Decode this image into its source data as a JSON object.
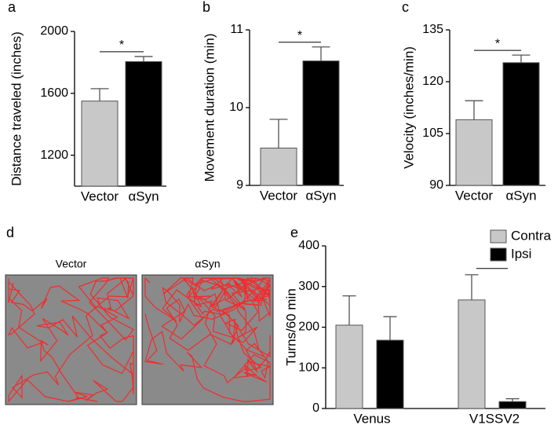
{
  "chart_data": [
    {
      "type": "bar",
      "label": "a",
      "ylabel": "Distance traveled (inches)",
      "categories": [
        "Vector",
        "αSyn"
      ],
      "values": [
        1550,
        1805
      ],
      "errors": [
        80,
        33
      ],
      "colors": [
        "#c8c8c8",
        "#000000"
      ],
      "ylim": [
        1000,
        2000
      ],
      "yticks": [
        1200,
        1600,
        2000
      ],
      "significance": "*"
    },
    {
      "type": "bar",
      "label": "b",
      "ylabel": "Movement duration (min)",
      "categories": [
        "Vector",
        "αSyn"
      ],
      "values": [
        9.48,
        10.6
      ],
      "errors": [
        0.37,
        0.18
      ],
      "colors": [
        "#c8c8c8",
        "#000000"
      ],
      "ylim": [
        9,
        11
      ],
      "yticks": [
        9,
        10,
        11
      ],
      "significance": "*"
    },
    {
      "type": "bar",
      "label": "c",
      "ylabel": "Velocity (inches/min)",
      "categories": [
        "Vector",
        "αSyn"
      ],
      "values": [
        109,
        125.5
      ],
      "errors": [
        5.5,
        2.2
      ],
      "colors": [
        "#c8c8c8",
        "#000000"
      ],
      "ylim": [
        90,
        135
      ],
      "yticks": [
        90,
        105,
        120,
        135
      ],
      "significance": "*"
    },
    {
      "type": "image",
      "label": "d",
      "panels": [
        "Vector",
        "αSyn"
      ]
    },
    {
      "type": "bar",
      "label": "e",
      "ylabel": "Turns/60 min",
      "categories": [
        "Venus",
        "V1SSV2"
      ],
      "series": [
        {
          "name": "Contra",
          "color": "#c8c8c8",
          "values": [
            205,
            267
          ],
          "errors": [
            72,
            62
          ]
        },
        {
          "name": "Ipsi",
          "color": "#000000",
          "values": [
            168,
            17
          ],
          "errors": [
            58,
            7
          ]
        }
      ],
      "ylim": [
        0,
        400
      ],
      "yticks": [
        0,
        100,
        200,
        300,
        400
      ],
      "significance": "*",
      "legend": "top-right"
    }
  ]
}
